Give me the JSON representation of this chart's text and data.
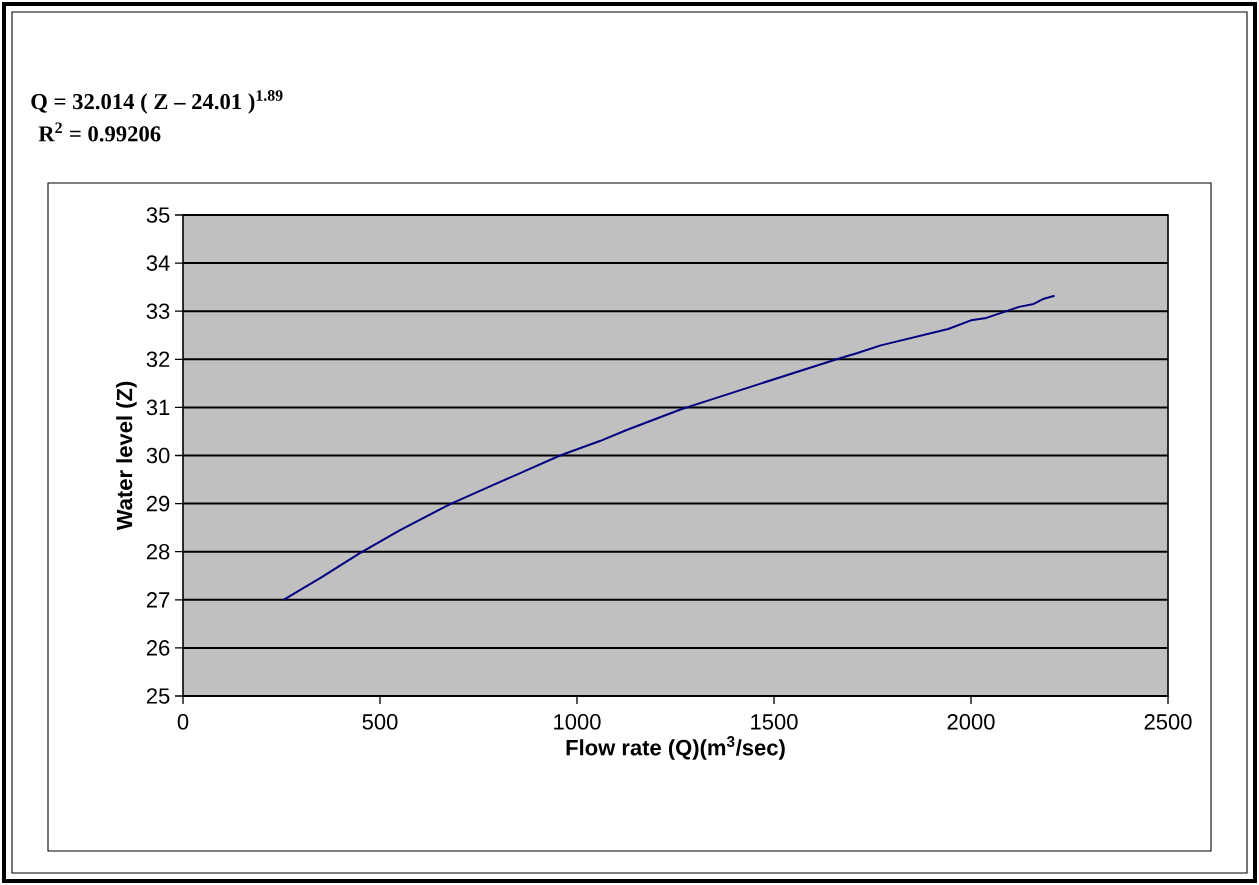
{
  "chart_data": {
    "type": "line",
    "annotations": [
      "**Q = 32.014 ( Z – 24.01 )$^{1.89}$**",
      "**R$^{2}$ = 0.99206**"
    ],
    "xlabel": "Flow rate (Q)(m$^{3}$/sec)",
    "ylabel": "Water level (Z)",
    "series": [
      {
        "color": "#000080",
        "x": [
          255,
          348,
          449,
          551,
          678,
          805,
          957,
          1058,
          1126,
          1261,
          1283,
          1468,
          1659,
          1712,
          1771,
          1942,
          2000,
          2039,
          2122,
          2159,
          2185,
          2212
        ],
        "values": [
          27.0,
          27.45,
          27.97,
          28.45,
          28.99,
          29.45,
          30.0,
          30.3,
          30.53,
          30.95,
          31.01,
          31.5,
          32.0,
          32.13,
          32.29,
          32.63,
          32.81,
          32.86,
          33.09,
          33.15,
          33.26,
          33.32
        ]
      }
    ],
    "xlim": [
      0,
      2500
    ],
    "ylim": [
      25,
      35
    ],
    "xticks": [
      0,
      500,
      1000,
      1500,
      2000,
      2500
    ],
    "yticks": [
      25,
      26,
      27,
      28,
      29,
      30,
      31,
      32,
      33,
      34,
      35
    ],
    "grid": "y",
    "marker": "none",
    "line_style": "solid"
  }
}
